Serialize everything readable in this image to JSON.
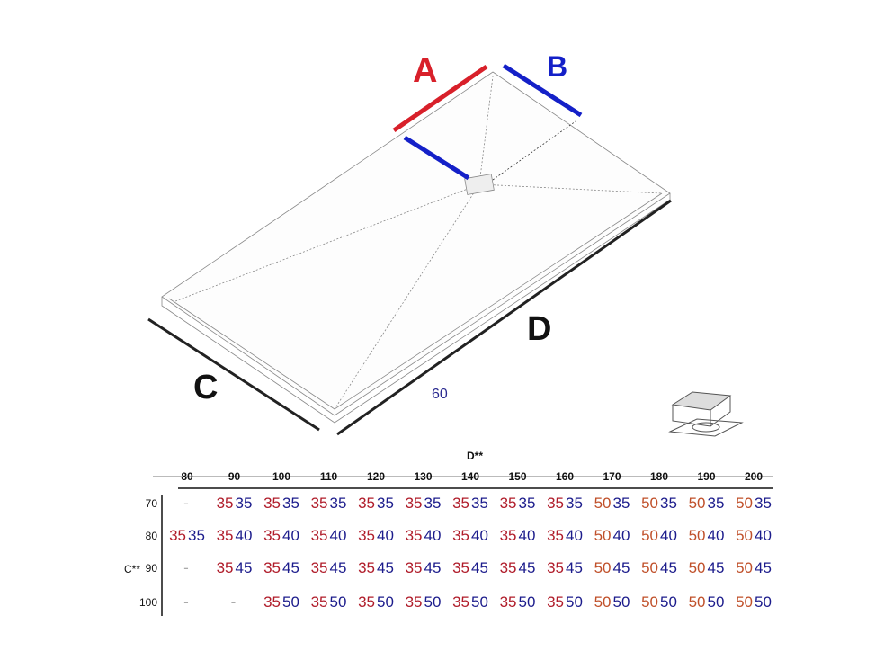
{
  "labels": {
    "a": "A",
    "b": "B",
    "c": "C",
    "d": "D",
    "sixty": "60"
  },
  "colors": {
    "a": "#d8202a",
    "b": "#1420c8",
    "first_35": "#b01c2a",
    "first_50": "#c0502a",
    "second": "#1c1c8c"
  },
  "table": {
    "col_header": "D**",
    "row_header": "C**",
    "columns": [
      "80",
      "90",
      "100",
      "110",
      "120",
      "130",
      "140",
      "150",
      "160",
      "170",
      "180",
      "190",
      "200"
    ],
    "rows": [
      {
        "label": "70",
        "cells": [
          [
            "-",
            ""
          ],
          [
            "35",
            "35"
          ],
          [
            "35",
            "35"
          ],
          [
            "35",
            "35"
          ],
          [
            "35",
            "35"
          ],
          [
            "35",
            "35"
          ],
          [
            "35",
            "35"
          ],
          [
            "35",
            "35"
          ],
          [
            "35",
            "35"
          ],
          [
            "50",
            "35"
          ],
          [
            "50",
            "35"
          ],
          [
            "50",
            "35"
          ],
          [
            "50",
            "35"
          ]
        ]
      },
      {
        "label": "80",
        "cells": [
          [
            "35",
            "35"
          ],
          [
            "35",
            "40"
          ],
          [
            "35",
            "40"
          ],
          [
            "35",
            "40"
          ],
          [
            "35",
            "40"
          ],
          [
            "35",
            "40"
          ],
          [
            "35",
            "40"
          ],
          [
            "35",
            "40"
          ],
          [
            "35",
            "40"
          ],
          [
            "50",
            "40"
          ],
          [
            "50",
            "40"
          ],
          [
            "50",
            "40"
          ],
          [
            "50",
            "40"
          ]
        ]
      },
      {
        "label": "90",
        "cells": [
          [
            "-",
            ""
          ],
          [
            "35",
            "45"
          ],
          [
            "35",
            "45"
          ],
          [
            "35",
            "45"
          ],
          [
            "35",
            "45"
          ],
          [
            "35",
            "45"
          ],
          [
            "35",
            "45"
          ],
          [
            "35",
            "45"
          ],
          [
            "35",
            "45"
          ],
          [
            "50",
            "45"
          ],
          [
            "50",
            "45"
          ],
          [
            "50",
            "45"
          ],
          [
            "50",
            "45"
          ]
        ]
      },
      {
        "label": "100",
        "cells": [
          [
            "-",
            ""
          ],
          [
            "-",
            ""
          ],
          [
            "35",
            "50"
          ],
          [
            "35",
            "50"
          ],
          [
            "35",
            "50"
          ],
          [
            "35",
            "50"
          ],
          [
            "35",
            "50"
          ],
          [
            "35",
            "50"
          ],
          [
            "35",
            "50"
          ],
          [
            "50",
            "50"
          ],
          [
            "50",
            "50"
          ],
          [
            "50",
            "50"
          ],
          [
            "50",
            "50"
          ]
        ]
      }
    ]
  }
}
